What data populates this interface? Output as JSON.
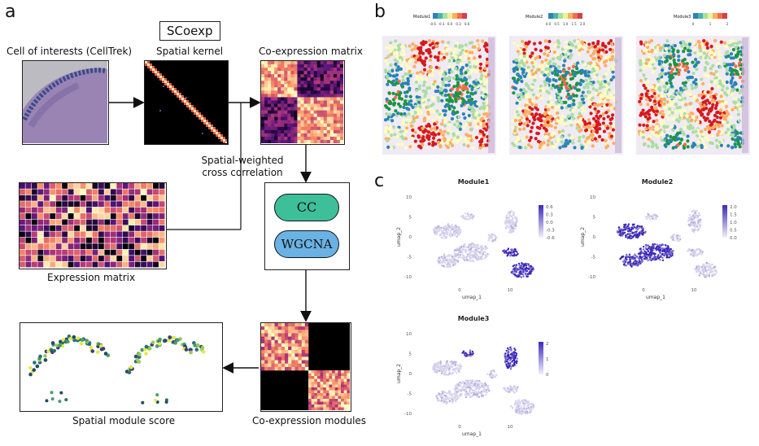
{
  "panel_a": {
    "letter": "a",
    "scoexp": "SCoexp",
    "cell_of_interest": "Cell of interests (CellTrek)",
    "spatial_kernel": "Spatial kernel",
    "coexp_matrix": "Co-expression matrix",
    "spatial_weighted_line1": "Spatial-weighted",
    "spatial_weighted_line2": "cross correlation",
    "cc": "CC",
    "wgcna": "WGCNA",
    "expression_matrix": "Expression matrix",
    "spatial_module_score": "Spatial module score",
    "coexp_modules": "Co-expression modules"
  },
  "panel_b": {
    "letter": "b",
    "maps": [
      {
        "legend_title": "Module1",
        "ticks": [
          "-0.6",
          "-0.3",
          "0.0",
          "0.3",
          "0.6"
        ]
      },
      {
        "legend_title": "Module2",
        "ticks": [
          "0.0",
          "0.5",
          "1.0",
          "1.5",
          "2.0"
        ]
      },
      {
        "legend_title": "Module3",
        "ticks": [
          "0",
          "1",
          "2"
        ]
      }
    ]
  },
  "panel_c": {
    "letter": "c",
    "plots": [
      {
        "title": "Module1",
        "xlabel": "umap_1",
        "ylabel": "umap_2",
        "yticks": [
          "10",
          "5",
          "0",
          "-5",
          "-10"
        ],
        "xticks": [
          "0",
          "10"
        ],
        "legend": [
          "0.6",
          "0.3",
          "0.0",
          "-0.3",
          "-0.6"
        ]
      },
      {
        "title": "Module2",
        "xlabel": "umap_1",
        "ylabel": "umap_2",
        "yticks": [
          "10",
          "5",
          "0",
          "-5",
          "-10"
        ],
        "xticks": [
          "0",
          "10"
        ],
        "legend": [
          "2.0",
          "1.5",
          "1.0",
          "0.5",
          "0.0"
        ]
      },
      {
        "title": "Module3",
        "xlabel": "umap_1",
        "ylabel": "umap_2",
        "yticks": [
          "10",
          "5",
          "0",
          "-5",
          "-10"
        ],
        "xticks": [
          "0",
          "10"
        ],
        "legend": [
          "2",
          "1",
          "0"
        ]
      }
    ]
  },
  "colors": {
    "cc_fill": "#3dbf9a",
    "wgcna_fill": "#6ab2e3",
    "umap_high": "#3b2ab8",
    "umap_low": "#d8d4ec"
  }
}
